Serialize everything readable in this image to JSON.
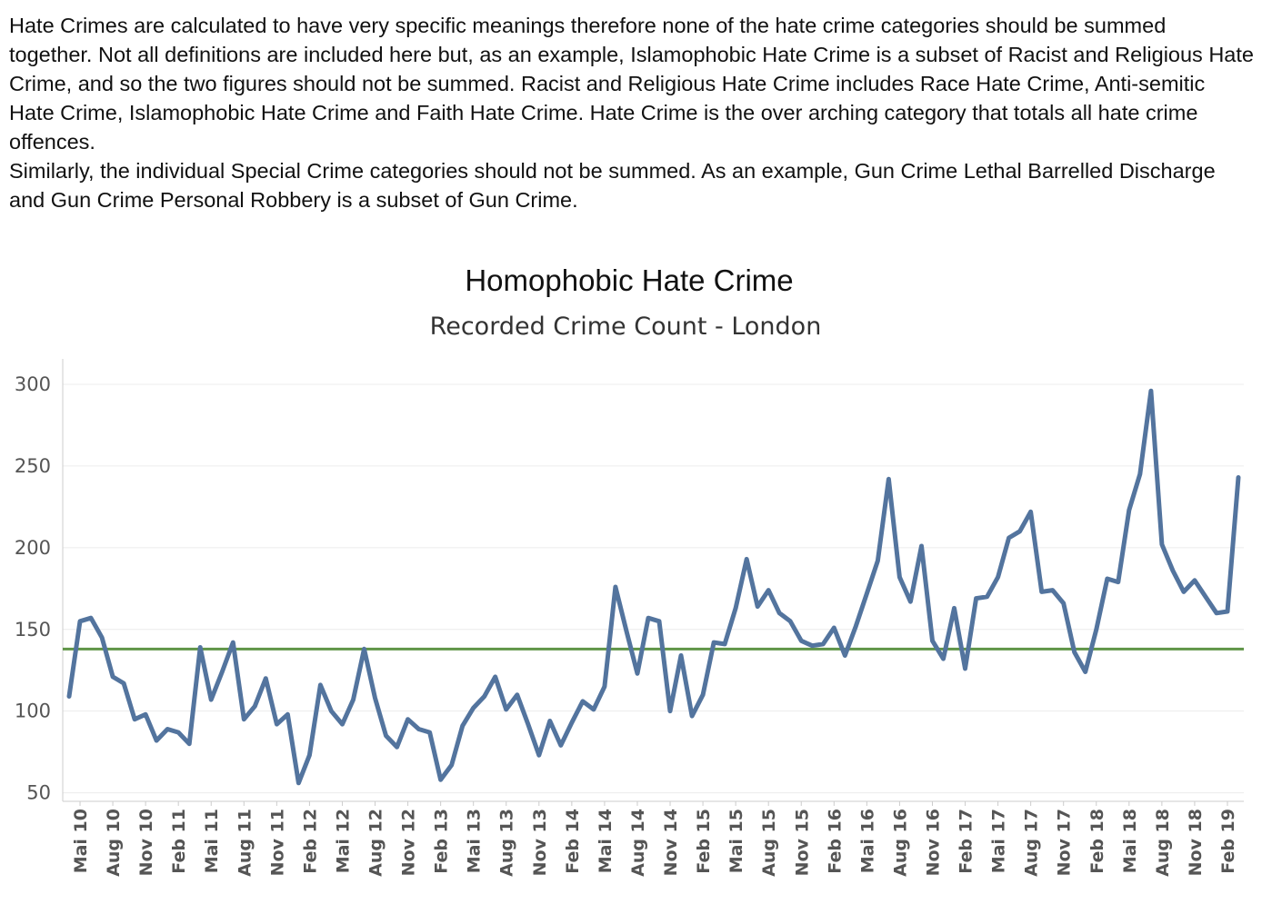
{
  "notes": {
    "paragraph_1": "Hate Crimes are calculated to have very specific meanings therefore none of the hate crime categories should be summed together. Not all definitions are included here but, as an example, Islamophobic Hate Crime is a subset of Racist and Religious Hate Crime, and so the two figures should not be summed. Racist and Religious Hate Crime includes Race Hate Crime, Anti-semitic Hate Crime, Islamophobic Hate Crime and Faith Hate Crime. Hate Crime is the over arching category that totals all hate crime offences.",
    "paragraph_2": "Similarly, the individual Special Crime categories should not be summed. As an example, Gun Crime Lethal Barrelled Discharge and Gun Crime Personal Robbery is a subset of Gun Crime."
  },
  "chart_data": {
    "type": "line",
    "title": "Homophobic Hate Crime",
    "subtitle": "Recorded Crime Count - London",
    "xlabel": "",
    "ylabel": "",
    "ylim": [
      47,
      310
    ],
    "yticks": [
      50,
      100,
      150,
      200,
      250,
      300
    ],
    "grid": "horizontal",
    "x_start": "Apr 10",
    "x_end": "Apr 19",
    "tick_labels": [
      "Mai 10",
      "Aug 10",
      "Nov 10",
      "Feb 11",
      "Mai 11",
      "Aug 11",
      "Nov 11",
      "Feb 12",
      "Mai 12",
      "Aug 12",
      "Nov 12",
      "Feb 13",
      "Mai 13",
      "Aug 13",
      "Nov 13",
      "Feb 14",
      "Mai 14",
      "Aug 14",
      "Nov 14",
      "Feb 15",
      "Mai 15",
      "Aug 15",
      "Nov 15",
      "Feb 16",
      "Mai 16",
      "Aug 16",
      "Nov 16",
      "Feb 17",
      "Mai 17",
      "Aug 17",
      "Nov 17",
      "Feb 18",
      "Mai 18",
      "Aug 18",
      "Nov 18",
      "Feb 19"
    ],
    "series": [
      {
        "color": "#53749e",
        "values": [
          109,
          155,
          157,
          145,
          121,
          117,
          95,
          98,
          82,
          89,
          87,
          80,
          139,
          107,
          124,
          142,
          95,
          103,
          120,
          92,
          98,
          56,
          73,
          116,
          100,
          92,
          107,
          138,
          108,
          85,
          78,
          95,
          89,
          87,
          58,
          67,
          91,
          102,
          109,
          121,
          101,
          110,
          92,
          73,
          94,
          79,
          93,
          106,
          101,
          115,
          176,
          149,
          123,
          157,
          155,
          100,
          134,
          97,
          110,
          142,
          141,
          163,
          193,
          164,
          174,
          160,
          155,
          143,
          140,
          141,
          151,
          134,
          152,
          172,
          192,
          242,
          182,
          167,
          201,
          143,
          132,
          163,
          126,
          169,
          170,
          182,
          206,
          210,
          222,
          173,
          174,
          166,
          136,
          124,
          150,
          181,
          179,
          223,
          245,
          296,
          202,
          186,
          173,
          180,
          170,
          160,
          161,
          243
        ]
      }
    ],
    "reference_line": {
      "value": 138,
      "color": "#5f9447"
    },
    "colors": {
      "grid": "#ececec",
      "axis": "#cccccc"
    }
  }
}
